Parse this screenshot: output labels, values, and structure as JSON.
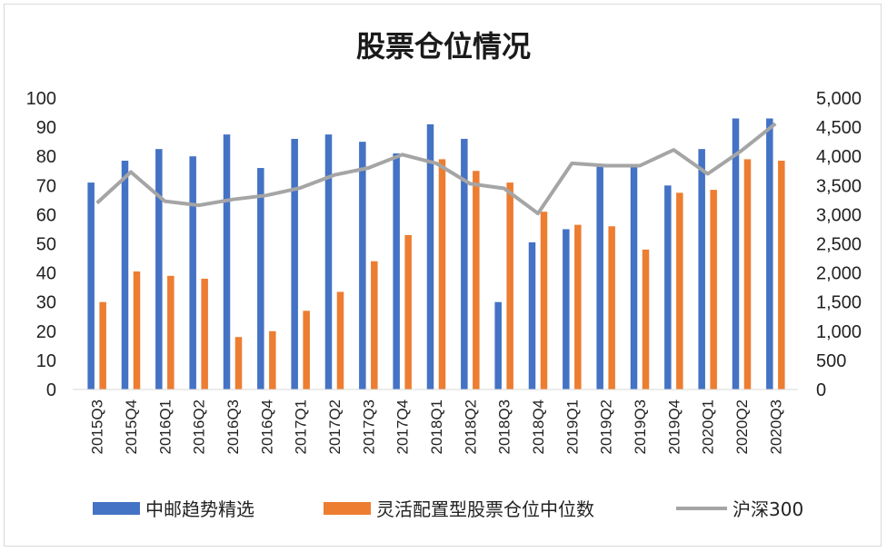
{
  "chart_data": {
    "type": "bar",
    "title": "股票仓位情况",
    "categories": [
      "2015Q3",
      "2015Q4",
      "2016Q1",
      "2016Q2",
      "2016Q3",
      "2016Q4",
      "2017Q1",
      "2017Q2",
      "2017Q3",
      "2017Q4",
      "2018Q1",
      "2018Q2",
      "2018Q3",
      "2018Q4",
      "2019Q1",
      "2019Q2",
      "2019Q3",
      "2019Q4",
      "2020Q1",
      "2020Q2",
      "2020Q3"
    ],
    "series": [
      {
        "name": "中邮趋势精选",
        "kind": "bar",
        "axis": "left",
        "color": "#4472c4",
        "values": [
          71,
          78.5,
          82.5,
          80,
          87.5,
          76,
          86,
          87.5,
          85,
          81,
          91,
          86,
          30,
          50.5,
          55,
          77,
          77,
          70,
          82.5,
          93,
          93
        ]
      },
      {
        "name": "灵活配置型股票仓位中位数",
        "kind": "bar",
        "axis": "left",
        "color": "#ed7d31",
        "values": [
          30,
          40.5,
          39,
          38,
          18,
          20,
          27,
          33.5,
          44,
          53,
          79,
          75,
          71,
          61,
          56.5,
          56,
          48,
          67.5,
          68.5,
          79,
          78.5
        ]
      },
      {
        "name": "沪深300",
        "kind": "line",
        "axis": "right",
        "color": "#a5a5a5",
        "values": [
          3200,
          3730,
          3230,
          3160,
          3260,
          3330,
          3460,
          3680,
          3800,
          4030,
          3880,
          3530,
          3450,
          3020,
          3880,
          3840,
          3840,
          4110,
          3700,
          4100,
          4560
        ]
      }
    ],
    "ylim_left": [
      0,
      100
    ],
    "yticks_left": [
      "0",
      "10",
      "20",
      "30",
      "40",
      "50",
      "60",
      "70",
      "80",
      "90",
      "100"
    ],
    "ylim_right": [
      0,
      5000
    ],
    "yticks_right": [
      "0",
      "500",
      "1,000",
      "1,500",
      "2,000",
      "2,500",
      "3,000",
      "3,500",
      "4,000",
      "4,500",
      "5,000"
    ],
    "legend": {
      "position": "bottom",
      "labels": [
        "中邮趋势精选",
        "灵活配置型股票仓位中位数",
        "沪深300"
      ]
    }
  }
}
